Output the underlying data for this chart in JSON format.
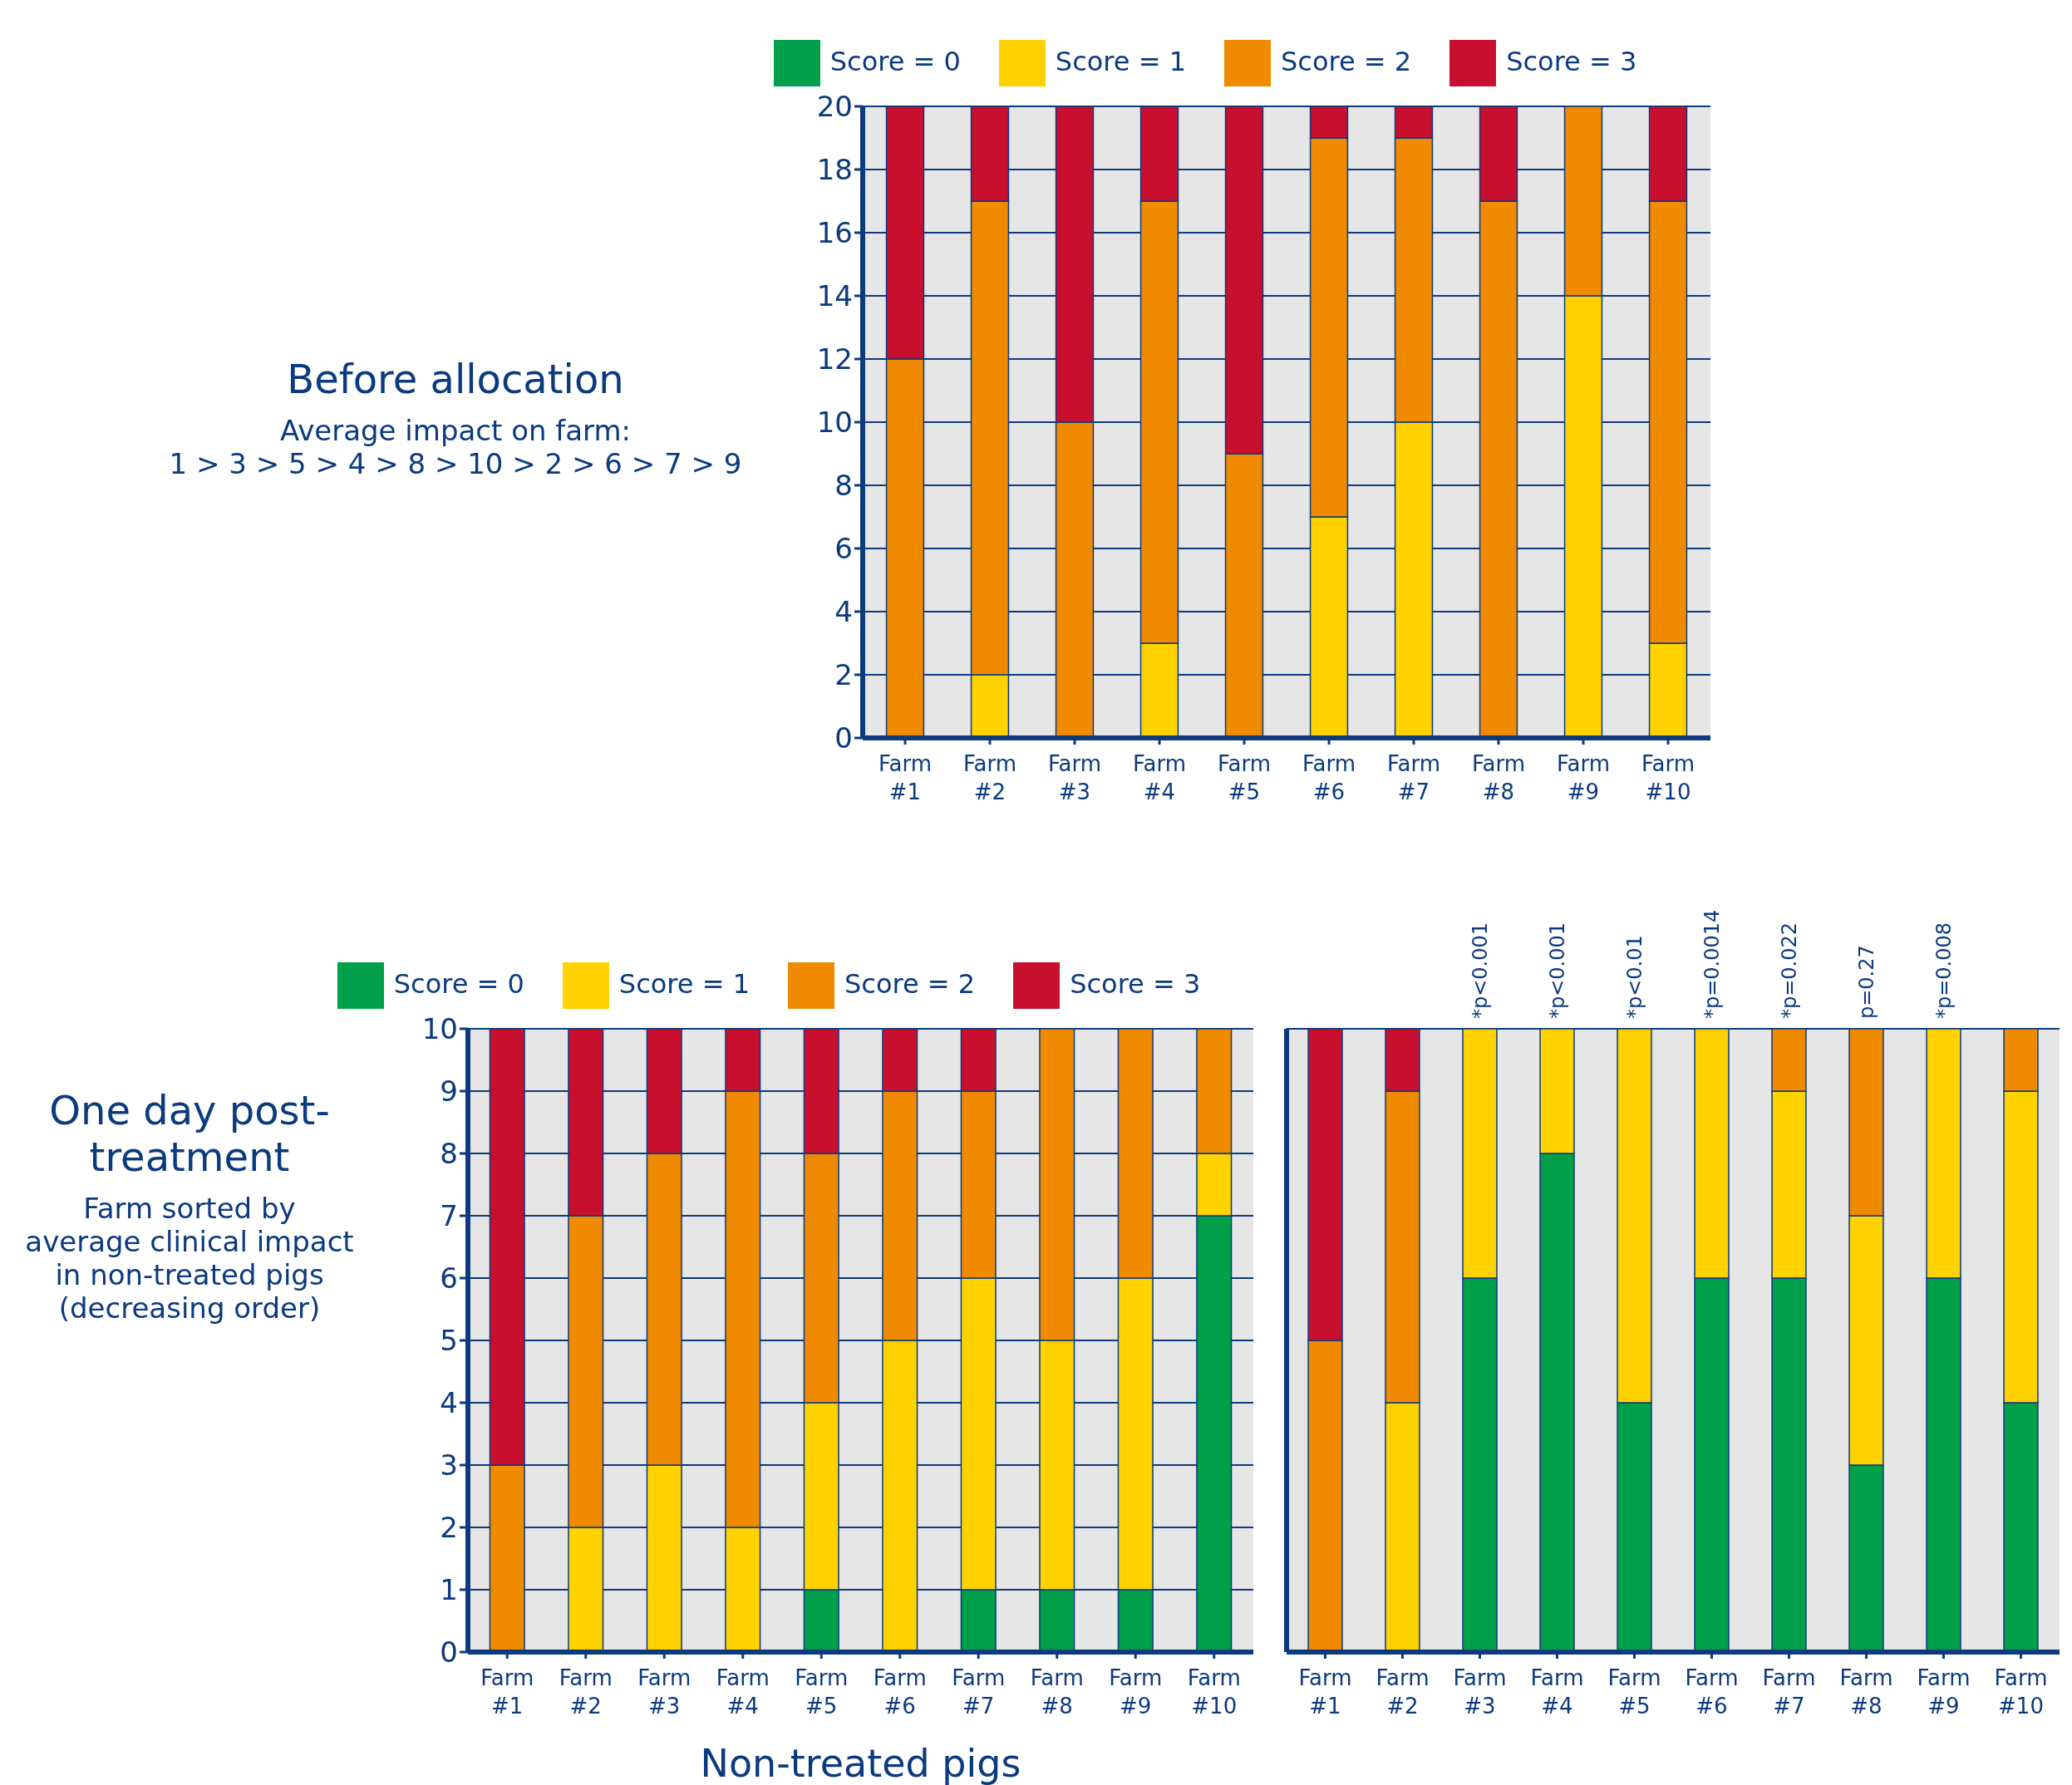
{
  "chart_data": [
    {
      "type": "bar",
      "stacked": true,
      "title": "Before allocation",
      "annotations": [
        "Average impact on farm:",
        "1 > 3 > 5 > 4 > 8 > 10 > 2 > 6 > 7 > 9"
      ],
      "categories": [
        "Farm #1",
        "Farm #2",
        "Farm #3",
        "Farm #4",
        "Farm #5",
        "Farm #6",
        "Farm #7",
        "Farm #8",
        "Farm #9",
        "Farm #10"
      ],
      "series": [
        {
          "name": "Score = 0",
          "color": "#00a04a",
          "values": [
            0,
            0,
            0,
            0,
            0,
            0,
            0,
            0,
            0,
            0
          ]
        },
        {
          "name": "Score = 1",
          "color": "#ffd200",
          "values": [
            0,
            2,
            0,
            3,
            0,
            7,
            10,
            0,
            14,
            3
          ]
        },
        {
          "name": "Score = 2",
          "color": "#f08a00",
          "values": [
            12,
            15,
            10,
            14,
            9,
            12,
            9,
            17,
            6,
            14
          ]
        },
        {
          "name": "Score = 3",
          "color": "#c8102e",
          "values": [
            8,
            3,
            10,
            3,
            11,
            1,
            1,
            3,
            0,
            3
          ]
        }
      ],
      "ylim": [
        0,
        20
      ],
      "yticks": [
        0,
        2,
        4,
        6,
        8,
        10,
        12,
        14,
        16,
        18,
        20
      ],
      "grid": "y",
      "legend": "top"
    },
    {
      "type": "bar",
      "stacked": true,
      "title": "One day post-treatment",
      "subtitle": "Farm sorted by average clinical impact in non-treated pigs (decreasing order)",
      "xlabel": "Non-treated pigs",
      "categories": [
        "Farm #1",
        "Farm #2",
        "Farm #3",
        "Farm #4",
        "Farm #5",
        "Farm #6",
        "Farm #7",
        "Farm #8",
        "Farm #9",
        "Farm #10"
      ],
      "series": [
        {
          "name": "Score = 0",
          "color": "#00a04a",
          "values": [
            0,
            0,
            0,
            0,
            1,
            0,
            1,
            1,
            1,
            7
          ]
        },
        {
          "name": "Score = 1",
          "color": "#ffd200",
          "values": [
            0,
            2,
            3,
            2,
            3,
            5,
            5,
            4,
            5,
            1
          ]
        },
        {
          "name": "Score = 2",
          "color": "#f08a00",
          "values": [
            3,
            5,
            5,
            7,
            4,
            4,
            3,
            5,
            4,
            2
          ]
        },
        {
          "name": "Score = 3",
          "color": "#c8102e",
          "values": [
            7,
            3,
            2,
            1,
            2,
            1,
            1,
            0,
            0,
            0
          ]
        }
      ],
      "ylim": [
        0,
        10
      ],
      "yticks": [
        0,
        1,
        2,
        3,
        4,
        5,
        6,
        7,
        8,
        9,
        10
      ],
      "grid": "y",
      "legend": "top"
    },
    {
      "type": "bar",
      "stacked": true,
      "categories": [
        "Farm #1",
        "Farm #2",
        "Farm #3",
        "Farm #4",
        "Farm #5",
        "Farm #6",
        "Farm #7",
        "Farm #8",
        "Farm #9",
        "Farm #10"
      ],
      "annotations": [
        "*p<0.001",
        "*p<0.001",
        "*p<0.01",
        "*p=0.0014",
        "*p=0.022",
        "p=0.27",
        "*p=0.008"
      ],
      "series": [
        {
          "color": "#00a04a",
          "values": [
            0,
            0,
            6,
            8,
            4,
            6,
            6,
            3,
            6,
            4
          ]
        },
        {
          "color": "#ffd200",
          "values": [
            0,
            4,
            4,
            2,
            6,
            4,
            3,
            4,
            4,
            5
          ]
        },
        {
          "color": "#f08a00",
          "values": [
            5,
            5,
            0,
            0,
            0,
            0,
            1,
            3,
            0,
            1
          ]
        },
        {
          "color": "#c8102e",
          "values": [
            5,
            1,
            0,
            0,
            0,
            0,
            0,
            0,
            0,
            0
          ]
        }
      ],
      "ylim": [
        0,
        10
      ],
      "yticks": [
        0,
        1,
        2,
        3,
        4,
        5,
        6,
        7,
        8,
        9,
        10
      ],
      "grid": "y",
      "tick_labels": "x"
    }
  ]
}
